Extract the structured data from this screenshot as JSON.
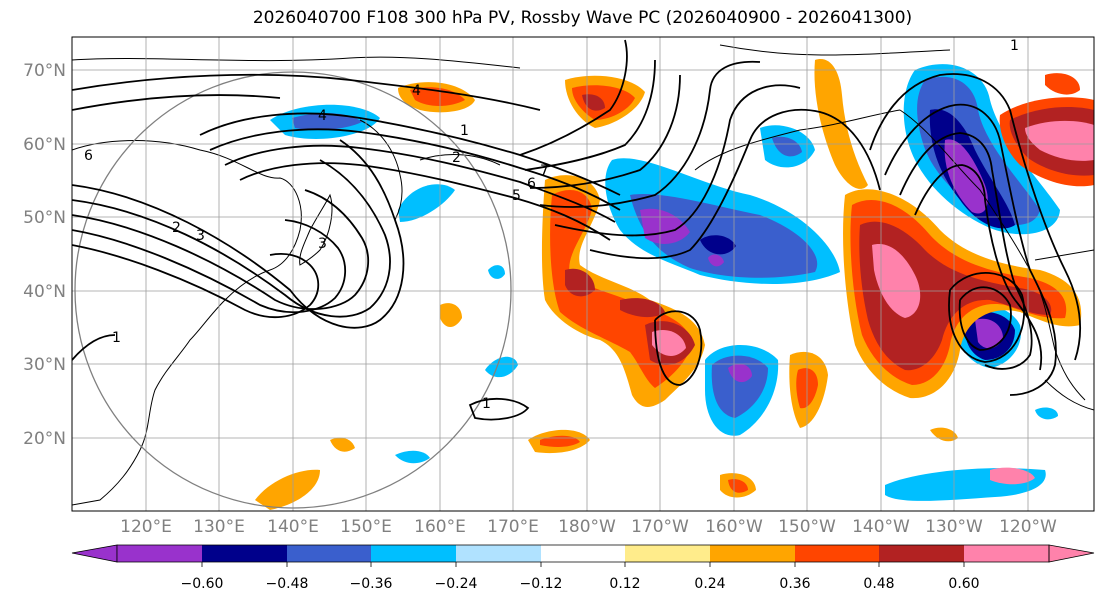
{
  "title": "2026040700 F108 300 hPa PV, Rossby Wave PC (2026040900 - 2026041300)",
  "lat_labels": [
    "70°N",
    "60°N",
    "50°N",
    "40°N",
    "30°N",
    "20°N"
  ],
  "lon_labels": [
    "120°E",
    "130°E",
    "140°E",
    "150°E",
    "160°E",
    "170°E",
    "180°W",
    "170°W",
    "160°W",
    "150°W",
    "140°W",
    "130°W",
    "120°W"
  ],
  "contour_labels": [
    "1",
    "2",
    "3",
    "4",
    "5",
    "6",
    "7",
    "1",
    "2",
    "3",
    "4",
    "6",
    "1",
    "1"
  ],
  "colorbar": {
    "ticks": [
      "−0.60",
      "−0.48",
      "−0.36",
      "−0.24",
      "−0.12",
      "0.12",
      "0.24",
      "0.36",
      "0.48",
      "0.60"
    ],
    "colors": [
      "#9932cc",
      "#00008b",
      "#3a5fcd",
      "#00bfff",
      "#b0e2ff",
      "#ffffff",
      "#ffec8b",
      "#ffa500",
      "#ff4500",
      "#b22222",
      "#ff82ab"
    ]
  }
}
